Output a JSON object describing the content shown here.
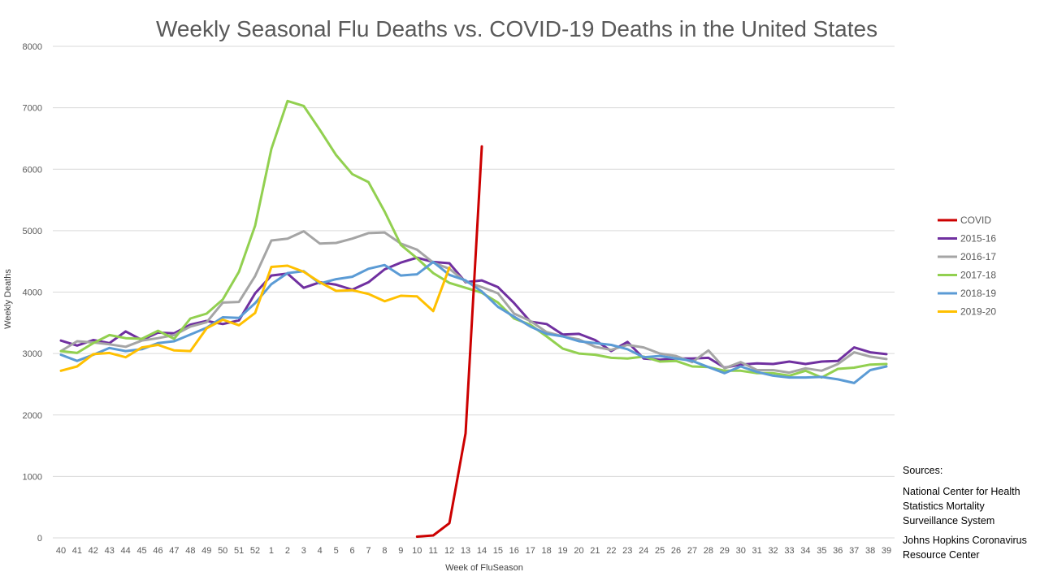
{
  "chart_data": {
    "type": "line",
    "title": "Weekly Seasonal Flu Deaths vs. COVID-19 Deaths in the United States",
    "xlabel": "Week of FluSeason",
    "ylabel": "Weekly Deaths",
    "ylim": [
      0,
      8000
    ],
    "yticks": [
      "0",
      "1000",
      "2000",
      "3000",
      "4000",
      "5000",
      "6000",
      "7000",
      "8000"
    ],
    "grid": true,
    "legend_position": "right",
    "categories": [
      "40",
      "41",
      "42",
      "43",
      "44",
      "45",
      "46",
      "47",
      "48",
      "49",
      "50",
      "51",
      "52",
      "1",
      "2",
      "3",
      "4",
      "5",
      "6",
      "7",
      "8",
      "9",
      "10",
      "11",
      "12",
      "13",
      "14",
      "15",
      "16",
      "17",
      "18",
      "19",
      "20",
      "21",
      "22",
      "23",
      "24",
      "25",
      "26",
      "27",
      "28",
      "29",
      "30",
      "31",
      "32",
      "33",
      "34",
      "35",
      "36",
      "37",
      "38",
      "39"
    ],
    "series": [
      {
        "name": "COVID",
        "color": "#cc0000",
        "values": [
          null,
          null,
          null,
          null,
          null,
          null,
          null,
          null,
          null,
          null,
          null,
          null,
          null,
          null,
          null,
          null,
          null,
          null,
          null,
          null,
          null,
          null,
          20,
          40,
          240,
          1700,
          6370,
          null,
          null,
          null,
          null,
          null,
          null,
          null,
          null,
          null,
          null,
          null,
          null,
          null,
          null,
          null,
          null,
          null,
          null,
          null,
          null,
          null,
          null,
          null,
          null,
          null
        ]
      },
      {
        "name": "2015-16",
        "color": "#7030a0",
        "values": [
          3210,
          3130,
          3220,
          3170,
          3360,
          3220,
          3340,
          3330,
          3470,
          3530,
          3480,
          3540,
          3980,
          4270,
          4300,
          4070,
          4160,
          4120,
          4040,
          4160,
          4370,
          4480,
          4560,
          4490,
          4470,
          4160,
          4190,
          4080,
          3820,
          3520,
          3480,
          3310,
          3320,
          3220,
          3040,
          3190,
          2920,
          2900,
          2920,
          2920,
          2930,
          2770,
          2820,
          2840,
          2830,
          2870,
          2830,
          2870,
          2880,
          3100,
          3020,
          2990
        ]
      },
      {
        "name": "2016-17",
        "color": "#a5a5a5",
        "values": [
          3040,
          3200,
          3180,
          3150,
          3110,
          3210,
          3250,
          3300,
          3440,
          3510,
          3830,
          3840,
          4260,
          4840,
          4870,
          4990,
          4790,
          4800,
          4870,
          4960,
          4970,
          4790,
          4690,
          4480,
          4380,
          4170,
          4080,
          3980,
          3650,
          3530,
          3350,
          3280,
          3230,
          3110,
          3060,
          3140,
          3100,
          3000,
          2960,
          2860,
          3050,
          2760,
          2860,
          2730,
          2730,
          2690,
          2760,
          2720,
          2830,
          3020,
          2950,
          2910
        ]
      },
      {
        "name": "2017-18",
        "color": "#92d050",
        "values": [
          3040,
          3010,
          3170,
          3300,
          3250,
          3240,
          3370,
          3240,
          3570,
          3650,
          3880,
          4330,
          5080,
          6330,
          7110,
          7030,
          6640,
          6230,
          5920,
          5790,
          5310,
          4770,
          4550,
          4310,
          4150,
          4070,
          3990,
          3830,
          3570,
          3470,
          3280,
          3080,
          3000,
          2980,
          2930,
          2920,
          2950,
          2870,
          2880,
          2790,
          2780,
          2720,
          2720,
          2680,
          2680,
          2640,
          2720,
          2610,
          2750,
          2770,
          2820,
          2830
        ]
      },
      {
        "name": "2018-19",
        "color": "#5b9bd5",
        "values": [
          2980,
          2880,
          2980,
          3090,
          3040,
          3070,
          3170,
          3200,
          3310,
          3420,
          3590,
          3580,
          3820,
          4130,
          4310,
          4340,
          4140,
          4210,
          4250,
          4380,
          4440,
          4270,
          4290,
          4490,
          4280,
          4190,
          4010,
          3760,
          3600,
          3440,
          3320,
          3280,
          3200,
          3170,
          3140,
          3070,
          2940,
          2960,
          2920,
          2880,
          2780,
          2680,
          2790,
          2700,
          2640,
          2610,
          2610,
          2620,
          2580,
          2520,
          2730,
          2790
        ]
      },
      {
        "name": "2019-20",
        "color": "#ffc000",
        "values": [
          2720,
          2790,
          2990,
          3010,
          2940,
          3100,
          3140,
          3050,
          3040,
          3410,
          3550,
          3460,
          3660,
          4410,
          4430,
          4330,
          4160,
          4020,
          4030,
          3970,
          3850,
          3940,
          3930,
          3690,
          4400,
          null,
          null,
          null,
          null,
          null,
          null,
          null,
          null,
          null,
          null,
          null,
          null,
          null,
          null,
          null,
          null,
          null,
          null,
          null,
          null,
          null,
          null,
          null,
          null,
          null,
          null,
          null
        ]
      }
    ]
  },
  "sources": {
    "heading": "Sources:",
    "items": [
      "National Center for Health Statistics Mortality Surveillance System",
      "Johns Hopkins Coronavirus Resource Center"
    ]
  }
}
